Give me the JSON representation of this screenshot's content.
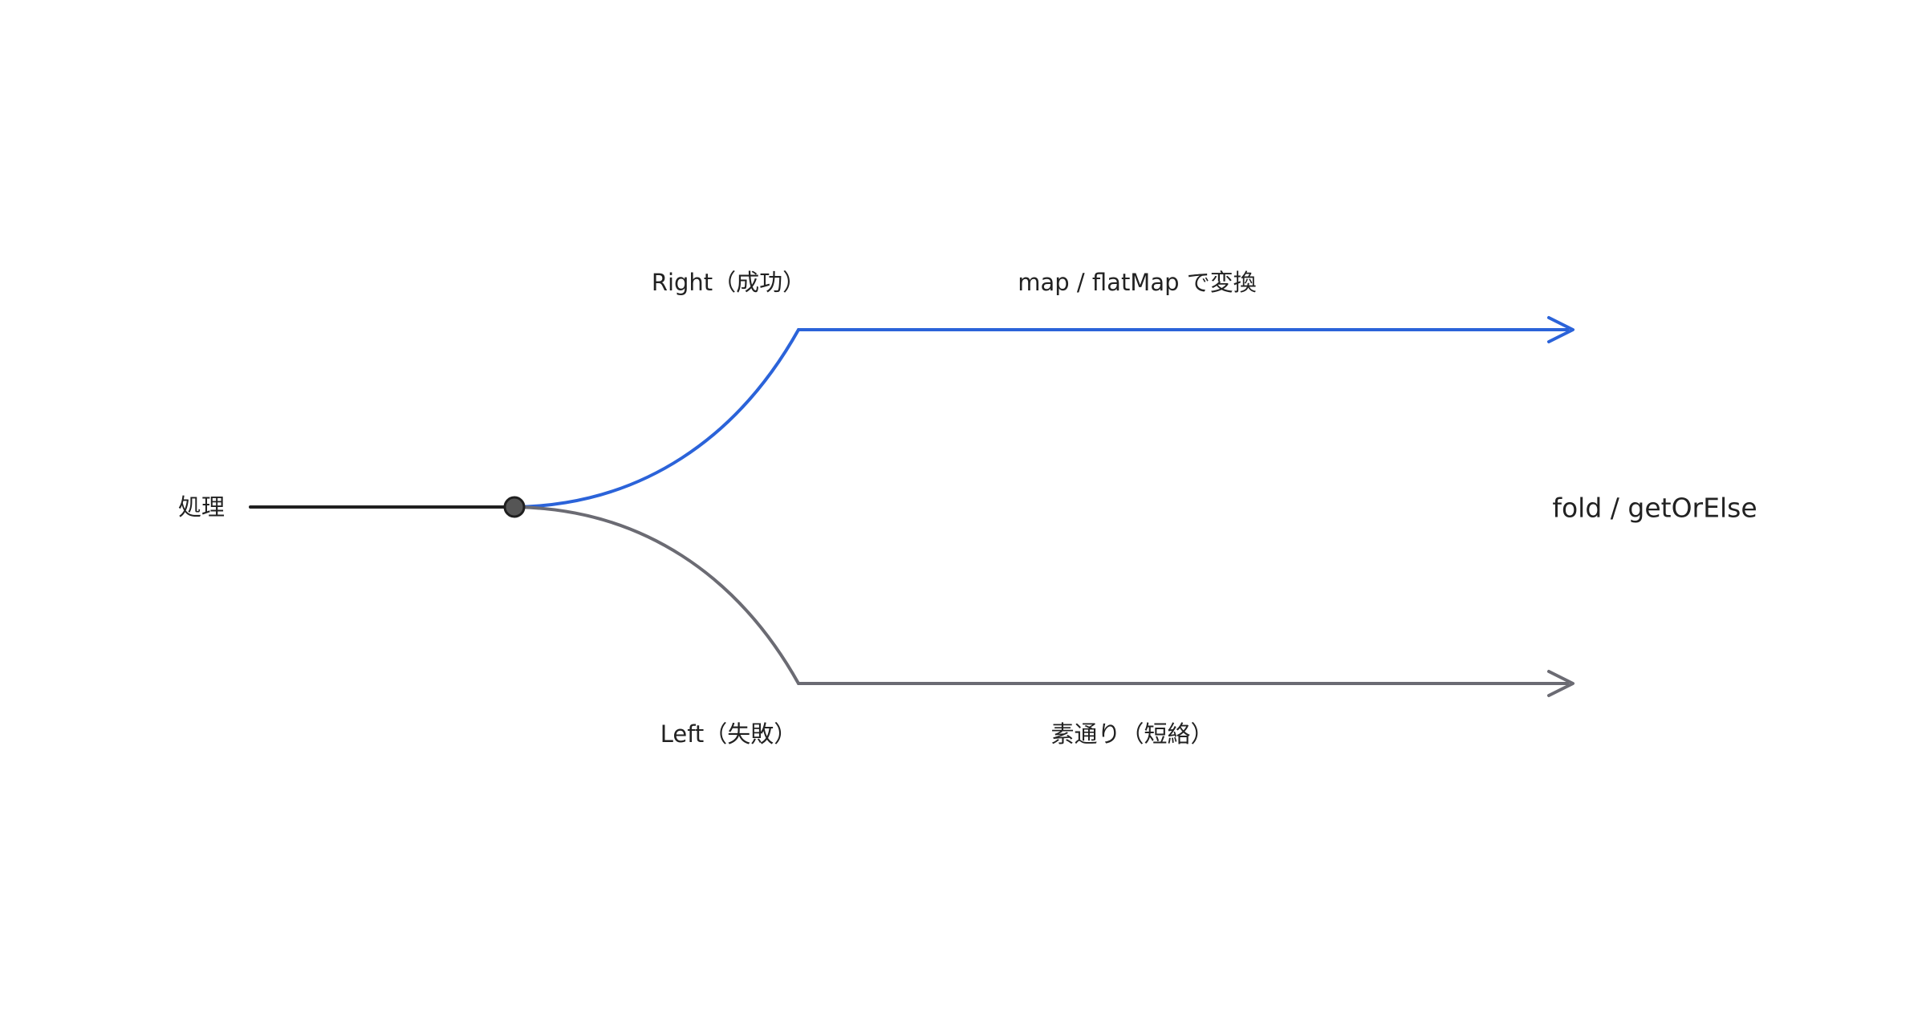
{
  "source_label": "処理",
  "branches": [
    {
      "label": "Right（成功）",
      "action": "map / flatMap で変換"
    },
    {
      "label": "Left（失敗）",
      "action": "素通り（短絡）"
    }
  ],
  "result_label": "fold / getOrElse"
}
